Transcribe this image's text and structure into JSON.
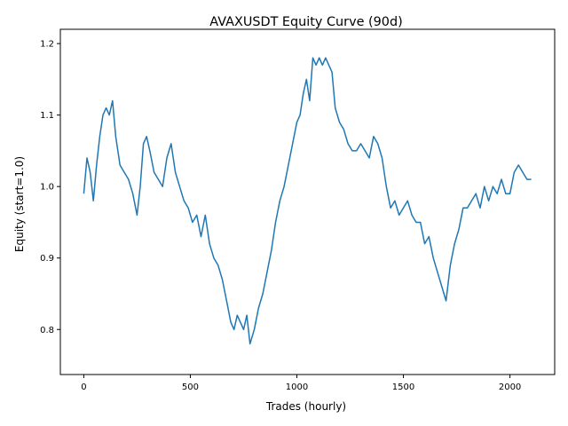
{
  "chart_data": {
    "type": "line",
    "title": "AVAXUSDT Equity Curve (90d)",
    "xlabel": "Trades (hourly)",
    "ylabel": "Equity (start=1.0)",
    "xlim": [
      -110,
      2210
    ],
    "ylim": [
      0.737,
      1.22
    ],
    "xticks": [
      0,
      500,
      1000,
      1500,
      2000
    ],
    "yticks": [
      0.8,
      0.9,
      1.0,
      1.1,
      1.2
    ],
    "xtick_labels": [
      "0",
      "500",
      "1000",
      "1500",
      "2000"
    ],
    "ytick_labels": [
      "0.8",
      "0.9",
      "1.0",
      "1.1",
      "1.2"
    ],
    "grid": false,
    "line_color": "#1f77b4",
    "series": [
      {
        "x": [
          0,
          15,
          30,
          45,
          60,
          75,
          90,
          105,
          120,
          135,
          150,
          170,
          190,
          210,
          230,
          250,
          265,
          280,
          295,
          310,
          330,
          350,
          370,
          390,
          410,
          430,
          450,
          470,
          490,
          510,
          530,
          550,
          570,
          590,
          610,
          630,
          650,
          670,
          690,
          705,
          720,
          735,
          750,
          765,
          780,
          800,
          820,
          840,
          860,
          880,
          900,
          920,
          940,
          960,
          980,
          1000,
          1015,
          1030,
          1045,
          1060,
          1075,
          1090,
          1105,
          1120,
          1135,
          1150,
          1165,
          1180,
          1200,
          1220,
          1240,
          1260,
          1280,
          1300,
          1320,
          1340,
          1360,
          1380,
          1400,
          1420,
          1440,
          1460,
          1480,
          1500,
          1520,
          1540,
          1560,
          1580,
          1600,
          1620,
          1640,
          1660,
          1680,
          1700,
          1720,
          1740,
          1760,
          1780,
          1800,
          1820,
          1840,
          1860,
          1880,
          1900,
          1920,
          1940,
          1960,
          1980,
          2000,
          2020,
          2040,
          2060,
          2080,
          2100
        ],
        "y": [
          0.99,
          1.04,
          1.02,
          0.98,
          1.03,
          1.07,
          1.1,
          1.11,
          1.1,
          1.12,
          1.07,
          1.03,
          1.02,
          1.01,
          0.99,
          0.96,
          1.0,
          1.06,
          1.07,
          1.05,
          1.02,
          1.01,
          1.0,
          1.04,
          1.06,
          1.02,
          1.0,
          0.98,
          0.97,
          0.95,
          0.96,
          0.93,
          0.96,
          0.92,
          0.9,
          0.89,
          0.87,
          0.84,
          0.81,
          0.8,
          0.82,
          0.81,
          0.8,
          0.82,
          0.78,
          0.8,
          0.83,
          0.85,
          0.88,
          0.91,
          0.95,
          0.98,
          1.0,
          1.03,
          1.06,
          1.09,
          1.1,
          1.13,
          1.15,
          1.12,
          1.18,
          1.17,
          1.18,
          1.17,
          1.18,
          1.17,
          1.16,
          1.11,
          1.09,
          1.08,
          1.06,
          1.05,
          1.05,
          1.06,
          1.05,
          1.04,
          1.07,
          1.06,
          1.04,
          1.0,
          0.97,
          0.98,
          0.96,
          0.97,
          0.98,
          0.96,
          0.95,
          0.95,
          0.92,
          0.93,
          0.9,
          0.88,
          0.86,
          0.84,
          0.89,
          0.92,
          0.94,
          0.97,
          0.97,
          0.98,
          0.99,
          0.97,
          1.0,
          0.98,
          1.0,
          0.99,
          1.01,
          0.99,
          0.99,
          1.02,
          1.03,
          1.02,
          1.01,
          1.01
        ]
      }
    ]
  }
}
